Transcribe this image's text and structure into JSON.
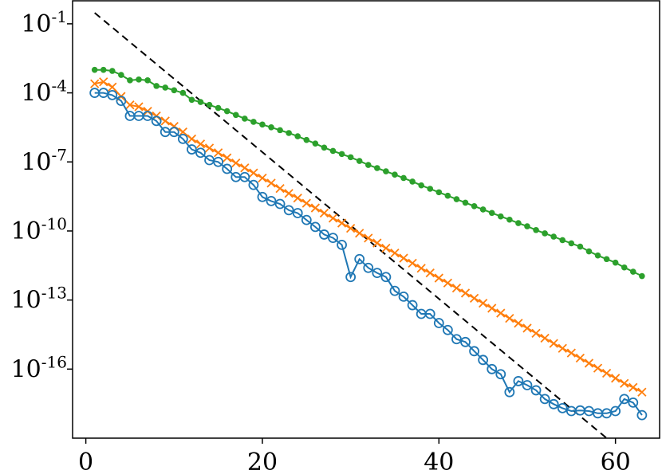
{
  "chart_data": {
    "type": "line",
    "title": "",
    "xlabel": "",
    "ylabel": "",
    "y_scale": "log",
    "grid": false,
    "legend": "none",
    "xlim": [
      -1.5,
      65
    ],
    "ylim": [
      1e-19,
      1
    ],
    "x_ticks": [
      {
        "value": 0,
        "label": "0"
      },
      {
        "value": 20,
        "label": "20"
      },
      {
        "value": 40,
        "label": "40"
      },
      {
        "value": 60,
        "label": "60"
      }
    ],
    "y_ticks": [
      {
        "value": 0.1,
        "base": "10",
        "exp": "-1"
      },
      {
        "value": 0.0001,
        "base": "10",
        "exp": "-4"
      },
      {
        "value": 1e-07,
        "base": "10",
        "exp": "-7"
      },
      {
        "value": 1e-10,
        "base": "10",
        "exp": "-10"
      },
      {
        "value": 1e-13,
        "base": "10",
        "exp": "-13"
      },
      {
        "value": 1e-16,
        "base": "10",
        "exp": "-16"
      }
    ],
    "series": [
      {
        "style": "dashed",
        "color": "#000000",
        "x": [
          1,
          59
        ],
        "y": [
          0.3,
          1e-19
        ]
      },
      {
        "marker": "dot",
        "color": "#2ca02c",
        "x": [
          1,
          2,
          3,
          4,
          5,
          6,
          7,
          8,
          9,
          10,
          11,
          12,
          13,
          14,
          15,
          16,
          17,
          18,
          19,
          20,
          21,
          22,
          23,
          24,
          25,
          26,
          27,
          28,
          29,
          30,
          31,
          32,
          33,
          34,
          35,
          36,
          37,
          38,
          39,
          40,
          41,
          42,
          43,
          44,
          45,
          46,
          47,
          48,
          49,
          50,
          51,
          52,
          53,
          54,
          55,
          56,
          57,
          58,
          59,
          60,
          61,
          62,
          63
        ],
        "y": [
          0.001,
          0.001,
          0.0009,
          0.0006,
          0.00035,
          0.00038,
          0.00035,
          0.0002,
          0.00017,
          0.00013,
          0.0001,
          5e-05,
          4e-05,
          3e-05,
          2.2e-05,
          1.6e-05,
          1.1e-05,
          7.6e-06,
          5.5e-06,
          4.2e-06,
          3.2e-06,
          2.4e-06,
          1.8e-06,
          1.3e-06,
          9e-07,
          6.3e-07,
          4.2e-07,
          3e-07,
          2.2e-07,
          1.6e-07,
          1.1e-07,
          7.4e-08,
          5.4e-08,
          3.9e-08,
          2.8e-08,
          2e-08,
          1.4e-08,
          9.6e-09,
          6.8e-09,
          4.8e-09,
          3.4e-09,
          2.4e-09,
          1.7e-09,
          1.2e-09,
          8.6e-10,
          6.1e-10,
          4.3e-10,
          3.1e-10,
          2.2e-10,
          1.6e-10,
          1.1e-10,
          7.9e-11,
          5.7e-11,
          4e-11,
          2.9e-11,
          2.1e-11,
          1.3e-11,
          8.6e-12,
          6e-12,
          4.2e-12,
          2.6e-12,
          1.7e-12,
          1.1e-12
        ]
      },
      {
        "marker": "x",
        "color": "#ff7f0e",
        "x": [
          1,
          2,
          3,
          4,
          5,
          6,
          7,
          8,
          9,
          10,
          11,
          12,
          13,
          14,
          15,
          16,
          17,
          18,
          19,
          20,
          21,
          22,
          23,
          24,
          25,
          26,
          27,
          28,
          29,
          30,
          31,
          32,
          33,
          34,
          35,
          36,
          37,
          38,
          39,
          40,
          41,
          42,
          43,
          44,
          45,
          46,
          47,
          48,
          49,
          50,
          51,
          52,
          53,
          54,
          55,
          56,
          57,
          58,
          59,
          60,
          61,
          62,
          63
        ],
        "y": [
          0.00025,
          0.0003,
          0.00018,
          7e-05,
          3e-05,
          2.5e-05,
          1.6e-05,
          1e-05,
          6e-06,
          3.5e-06,
          2e-06,
          1e-06,
          6e-07,
          4e-07,
          2.5e-07,
          1.5e-07,
          9e-08,
          5.5e-08,
          3.3e-08,
          2e-08,
          1.2e-08,
          7e-09,
          4.3e-09,
          2.7e-09,
          1.6e-09,
          1e-09,
          6e-10,
          3.6e-10,
          2.2e-10,
          1.3e-10,
          8e-11,
          4.9e-11,
          3e-11,
          1.8e-11,
          1.1e-11,
          6.6e-12,
          4e-12,
          2.4e-12,
          1.5e-12,
          9e-13,
          5.5e-13,
          3.3e-13,
          2e-13,
          1.2e-13,
          7.3e-14,
          4.4e-14,
          2.7e-14,
          1.6e-14,
          9.8e-15,
          6e-15,
          3.6e-15,
          2.2e-15,
          1.3e-15,
          8e-16,
          5e-16,
          3e-16,
          1.8e-16,
          1.1e-16,
          6.6e-17,
          4e-17,
          2.4e-17,
          1.6e-17,
          1e-17
        ]
      },
      {
        "marker": "circle",
        "color": "#1f77b4",
        "x": [
          1,
          2,
          3,
          4,
          5,
          6,
          7,
          8,
          9,
          10,
          11,
          12,
          13,
          14,
          15,
          16,
          17,
          18,
          19,
          20,
          21,
          22,
          23,
          24,
          25,
          26,
          27,
          28,
          29,
          30,
          31,
          32,
          33,
          34,
          35,
          36,
          37,
          38,
          39,
          40,
          41,
          42,
          43,
          44,
          45,
          46,
          47,
          48,
          49,
          50,
          51,
          52,
          53,
          54,
          55,
          56,
          57,
          58,
          59,
          60,
          61,
          62,
          63
        ],
        "y": [
          0.0001,
          0.0001,
          8e-05,
          4.5e-05,
          1e-05,
          1e-05,
          1e-05,
          6e-06,
          2e-06,
          2e-06,
          1e-06,
          3.5e-07,
          2.5e-07,
          1.2e-07,
          1e-07,
          5e-08,
          2.2e-08,
          2.2e-08,
          1e-08,
          3e-09,
          2e-09,
          1.5e-09,
          8e-10,
          6e-10,
          3e-10,
          1.5e-10,
          7e-11,
          5e-11,
          2.5e-11,
          1e-12,
          6e-12,
          2.5e-12,
          1.5e-12,
          1e-12,
          2.5e-13,
          1.4e-13,
          6e-14,
          2.5e-14,
          2.5e-14,
          1e-14,
          5e-15,
          2e-15,
          1.5e-15,
          6e-16,
          2.5e-16,
          1e-16,
          6e-17,
          1e-17,
          3e-17,
          2e-17,
          1.2e-17,
          5e-18,
          3e-18,
          2e-18,
          1.5e-18,
          1.6e-18,
          1.5e-18,
          1.2e-18,
          1.2e-18,
          1.5e-18,
          5e-18,
          3.5e-18,
          1e-18
        ]
      }
    ]
  }
}
